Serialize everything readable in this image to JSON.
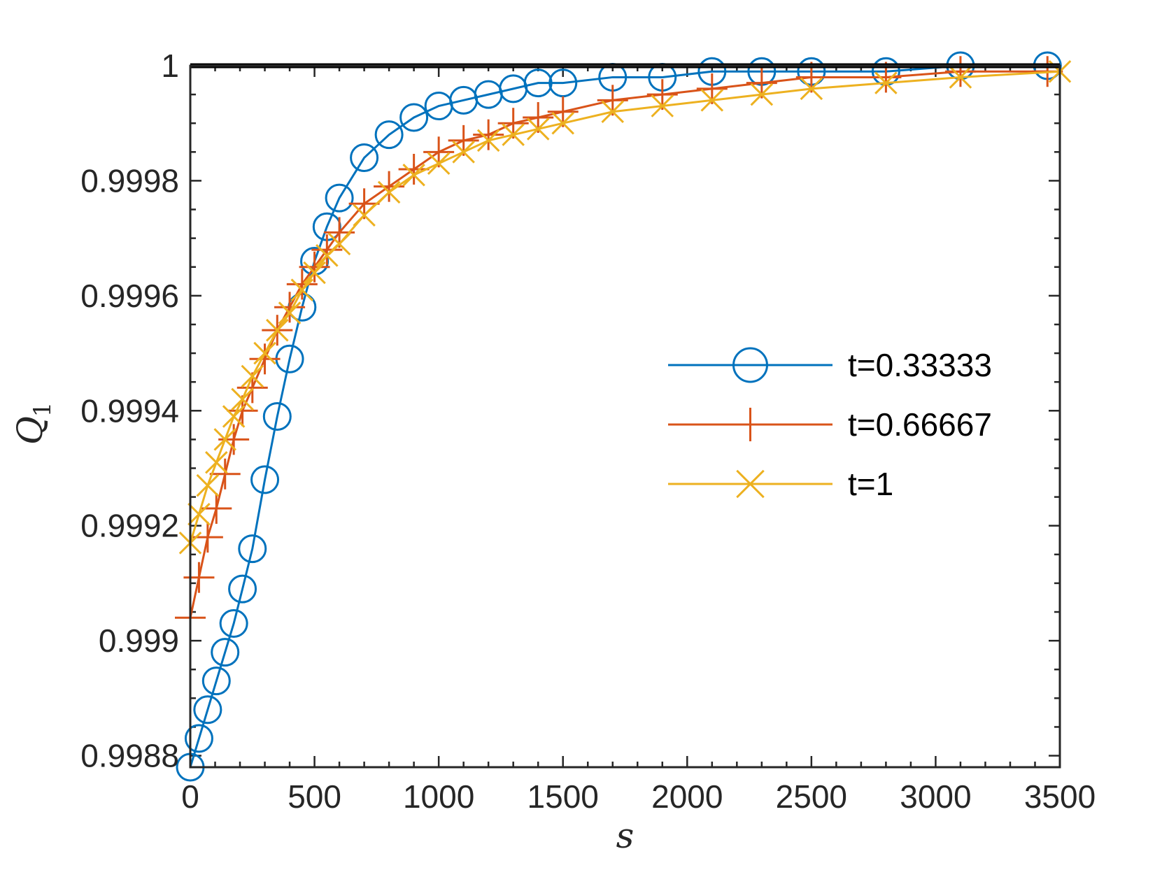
{
  "chart_data": {
    "type": "line",
    "title": "",
    "xlabel": "s",
    "ylabel": "Q",
    "ylabel_subscript": "1",
    "xlim": [
      0,
      3500
    ],
    "ylim": [
      0.99878,
      1.0
    ],
    "xticks": [
      0,
      500,
      1000,
      1500,
      2000,
      2500,
      3000,
      3500
    ],
    "xtick_labels": [
      "0",
      "500",
      "1000",
      "1500",
      "2000",
      "2500",
      "3000",
      "3500"
    ],
    "yticks": [
      0.9988,
      0.999,
      0.9992,
      0.9994,
      0.9996,
      0.9998,
      1.0
    ],
    "ytick_labels": [
      "0.9988",
      "0.999",
      "0.9992",
      "0.9994",
      "0.9996",
      "0.9998",
      "1"
    ],
    "legend_position": "center-right",
    "reference_line": {
      "y": 1.0,
      "color": "#000000"
    },
    "series": [
      {
        "name": "t=0.33333",
        "marker": "circle",
        "color": "#0072BD",
        "x": [
          0,
          35,
          70,
          105,
          140,
          175,
          210,
          250,
          300,
          350,
          400,
          450,
          500,
          550,
          600,
          700,
          800,
          900,
          1000,
          1100,
          1200,
          1300,
          1400,
          1500,
          1700,
          1900,
          2100,
          2300,
          2500,
          2800,
          3100,
          3450
        ],
        "values": [
          0.99878,
          0.99883,
          0.99888,
          0.99893,
          0.99898,
          0.99903,
          0.99909,
          0.99916,
          0.99928,
          0.99939,
          0.99949,
          0.99958,
          0.99966,
          0.99972,
          0.99977,
          0.99984,
          0.99988,
          0.99991,
          0.99993,
          0.99994,
          0.99995,
          0.99996,
          0.99997,
          0.99997,
          0.99998,
          0.99998,
          0.99999,
          0.99999,
          0.99999,
          0.99999,
          1.0,
          1.0
        ]
      },
      {
        "name": "t=0.66667",
        "marker": "plus",
        "color": "#D95319",
        "x": [
          0,
          35,
          70,
          105,
          140,
          175,
          210,
          250,
          300,
          350,
          400,
          450,
          500,
          550,
          600,
          700,
          800,
          900,
          1000,
          1100,
          1200,
          1300,
          1400,
          1500,
          1700,
          1900,
          2100,
          2300,
          2500,
          2800,
          3100,
          3450
        ],
        "values": [
          0.99904,
          0.99911,
          0.99918,
          0.99923,
          0.99929,
          0.99935,
          0.9994,
          0.99944,
          0.99949,
          0.99954,
          0.99958,
          0.99962,
          0.99965,
          0.99968,
          0.99971,
          0.99976,
          0.99979,
          0.99982,
          0.99985,
          0.99987,
          0.99988,
          0.9999,
          0.99991,
          0.99992,
          0.99994,
          0.99995,
          0.99996,
          0.99997,
          0.99998,
          0.99998,
          0.99999,
          0.99999
        ]
      },
      {
        "name": "t=1",
        "marker": "cross",
        "color": "#EDB120",
        "x": [
          0,
          35,
          70,
          105,
          140,
          175,
          210,
          250,
          300,
          350,
          400,
          450,
          500,
          550,
          600,
          700,
          800,
          900,
          1000,
          1100,
          1200,
          1300,
          1400,
          1500,
          1700,
          1900,
          2100,
          2300,
          2500,
          2800,
          3100,
          3500
        ],
        "values": [
          0.99917,
          0.99922,
          0.99927,
          0.99931,
          0.99935,
          0.99939,
          0.99942,
          0.99946,
          0.9995,
          0.99954,
          0.99957,
          0.99961,
          0.99964,
          0.99967,
          0.99969,
          0.99974,
          0.99978,
          0.99981,
          0.99983,
          0.99985,
          0.99987,
          0.99988,
          0.99989,
          0.9999,
          0.99992,
          0.99993,
          0.99994,
          0.99995,
          0.99996,
          0.99997,
          0.99998,
          0.99999
        ]
      }
    ]
  }
}
